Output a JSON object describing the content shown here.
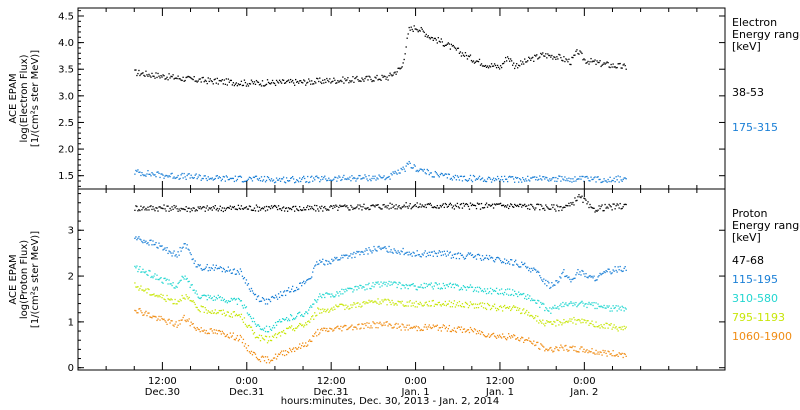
{
  "chart_data": [
    {
      "type": "scatter",
      "panel": "electron",
      "ylabel_lines": [
        "ACE EPAM",
        "log(Electron Flux)",
        "[1/(cm²s ster MeV)]"
      ],
      "ylim": [
        1.25,
        4.65
      ],
      "yticks": [
        "1.5",
        "2.0",
        "2.5",
        "3.0",
        "3.5",
        "4.0",
        "4.5"
      ],
      "ytick_values": [
        1.5,
        2.0,
        2.5,
        3.0,
        3.5,
        4.0,
        4.5
      ],
      "legend_title_lines": [
        "Electron",
        "Energy ranges",
        "[keV]"
      ],
      "series": [
        {
          "name": "38-53",
          "color": "#000000",
          "x": [
            0,
            4,
            8,
            12,
            16,
            20,
            24,
            28,
            32,
            36,
            38,
            39,
            40,
            41,
            42,
            44,
            46,
            48,
            50,
            52,
            53,
            54,
            55,
            56,
            58,
            60,
            61,
            62,
            63,
            64,
            66,
            68,
            70
          ],
          "y": [
            3.45,
            3.38,
            3.32,
            3.28,
            3.25,
            3.26,
            3.27,
            3.3,
            3.32,
            3.36,
            3.55,
            4.25,
            4.3,
            4.22,
            4.12,
            4.0,
            3.85,
            3.7,
            3.6,
            3.55,
            3.75,
            3.58,
            3.62,
            3.68,
            3.78,
            3.75,
            3.7,
            3.65,
            3.85,
            3.68,
            3.62,
            3.58,
            3.55
          ]
        },
        {
          "name": "175-315",
          "color": "#1a7fd6",
          "x": [
            0,
            4,
            8,
            12,
            16,
            20,
            24,
            28,
            32,
            36,
            38,
            39,
            40,
            42,
            44,
            46,
            48,
            50,
            52,
            54,
            56,
            58,
            60,
            62,
            64,
            66,
            68,
            70
          ],
          "y": [
            1.58,
            1.52,
            1.49,
            1.46,
            1.45,
            1.44,
            1.44,
            1.45,
            1.47,
            1.48,
            1.6,
            1.72,
            1.65,
            1.55,
            1.5,
            1.47,
            1.46,
            1.45,
            1.45,
            1.44,
            1.46,
            1.47,
            1.45,
            1.45,
            1.44,
            1.44,
            1.45,
            1.45
          ]
        }
      ]
    },
    {
      "type": "scatter",
      "panel": "proton",
      "ylabel_lines": [
        "ACE EPAM",
        "log(Proton Flux)",
        "[1/(cm²s ster MeV)]"
      ],
      "ylim": [
        -0.05,
        3.9
      ],
      "yticks": [
        "0",
        "1",
        "2",
        "3"
      ],
      "ytick_values": [
        0,
        1,
        2,
        3
      ],
      "legend_title_lines": [
        "Proton",
        "Energy ranges",
        "[keV]"
      ],
      "series": [
        {
          "name": "47-68",
          "color": "#000000",
          "x": [
            0,
            4,
            8,
            12,
            16,
            20,
            24,
            28,
            32,
            36,
            40,
            44,
            48,
            52,
            54,
            56,
            58,
            60,
            62,
            63,
            64,
            65,
            66,
            68,
            70
          ],
          "y": [
            3.5,
            3.5,
            3.48,
            3.49,
            3.5,
            3.5,
            3.48,
            3.5,
            3.52,
            3.54,
            3.55,
            3.55,
            3.54,
            3.55,
            3.55,
            3.53,
            3.52,
            3.5,
            3.55,
            3.75,
            3.65,
            3.45,
            3.5,
            3.52,
            3.55
          ]
        },
        {
          "name": "115-195",
          "color": "#1a7fd6",
          "x": [
            0,
            3,
            5,
            6,
            7,
            9,
            11,
            13,
            15,
            16,
            17,
            18,
            19,
            20,
            22,
            24,
            25,
            26,
            28,
            30,
            32,
            34,
            36,
            38,
            40,
            42,
            44,
            46,
            48,
            50,
            52,
            54,
            56,
            57,
            58,
            59,
            60,
            61,
            62,
            63,
            64,
            65,
            66,
            68,
            70
          ],
          "y": [
            2.85,
            2.7,
            2.55,
            2.45,
            2.75,
            2.2,
            2.2,
            2.15,
            2.1,
            1.85,
            1.6,
            1.5,
            1.45,
            1.55,
            1.7,
            1.85,
            2.0,
            2.3,
            2.35,
            2.45,
            2.5,
            2.6,
            2.6,
            2.55,
            2.5,
            2.5,
            2.5,
            2.45,
            2.45,
            2.4,
            2.35,
            2.3,
            2.2,
            2.1,
            1.95,
            1.8,
            1.9,
            2.1,
            1.9,
            2.1,
            2.05,
            1.95,
            2.0,
            2.15,
            2.2
          ]
        },
        {
          "name": "310-580",
          "color": "#22d6d0",
          "x": [
            0,
            3,
            5,
            6,
            7,
            9,
            11,
            13,
            15,
            16,
            17,
            18,
            19,
            20,
            22,
            24,
            25,
            26,
            28,
            30,
            32,
            34,
            36,
            38,
            40,
            42,
            44,
            46,
            48,
            50,
            52,
            54,
            56,
            58,
            59,
            60,
            62,
            64,
            66,
            68,
            70
          ],
          "y": [
            2.2,
            2.0,
            1.85,
            1.8,
            2.0,
            1.6,
            1.55,
            1.5,
            1.45,
            1.25,
            1.0,
            0.9,
            0.85,
            0.95,
            1.1,
            1.2,
            1.3,
            1.55,
            1.6,
            1.7,
            1.75,
            1.82,
            1.85,
            1.8,
            1.78,
            1.8,
            1.8,
            1.78,
            1.75,
            1.7,
            1.68,
            1.65,
            1.55,
            1.35,
            1.25,
            1.35,
            1.4,
            1.4,
            1.35,
            1.3,
            1.3
          ]
        },
        {
          "name": "795-1193",
          "color": "#c8e60a",
          "x": [
            0,
            3,
            5,
            6,
            7,
            9,
            11,
            13,
            15,
            16,
            17,
            18,
            19,
            20,
            22,
            24,
            25,
            26,
            28,
            30,
            32,
            34,
            36,
            38,
            40,
            42,
            44,
            46,
            48,
            50,
            52,
            54,
            56,
            58,
            59,
            60,
            62,
            64,
            66,
            68,
            70
          ],
          "y": [
            1.8,
            1.6,
            1.5,
            1.45,
            1.6,
            1.3,
            1.25,
            1.2,
            1.15,
            0.95,
            0.75,
            0.65,
            0.62,
            0.7,
            0.85,
            0.95,
            1.05,
            1.25,
            1.3,
            1.35,
            1.4,
            1.45,
            1.45,
            1.42,
            1.4,
            1.42,
            1.42,
            1.4,
            1.38,
            1.35,
            1.32,
            1.3,
            1.2,
            1.0,
            0.95,
            1.0,
            1.05,
            1.0,
            0.95,
            0.9,
            0.85
          ]
        },
        {
          "name": "1060-1900",
          "color": "#f08c14",
          "x": [
            0,
            3,
            5,
            6,
            7,
            9,
            11,
            13,
            15,
            16,
            17,
            18,
            19,
            20,
            22,
            24,
            25,
            26,
            28,
            30,
            32,
            34,
            36,
            38,
            40,
            42,
            44,
            46,
            48,
            50,
            52,
            54,
            56,
            58,
            59,
            60,
            62,
            64,
            66,
            68,
            70
          ],
          "y": [
            1.3,
            1.1,
            1.0,
            0.95,
            1.1,
            0.85,
            0.8,
            0.75,
            0.65,
            0.45,
            0.3,
            0.2,
            0.18,
            0.25,
            0.4,
            0.5,
            0.6,
            0.8,
            0.85,
            0.9,
            0.92,
            0.95,
            0.95,
            0.9,
            0.88,
            0.9,
            0.88,
            0.85,
            0.82,
            0.75,
            0.7,
            0.68,
            0.6,
            0.45,
            0.4,
            0.45,
            0.42,
            0.4,
            0.35,
            0.32,
            0.3
          ]
        }
      ]
    }
  ],
  "x_axis": {
    "xlim": [
      -8,
      84
    ],
    "ticks": [
      {
        "x": 4,
        "time": "12:00",
        "date": "Dec.30"
      },
      {
        "x": 16,
        "time": "0:00",
        "date": "Dec.31"
      },
      {
        "x": 28,
        "time": "12:00",
        "date": "Dec.31"
      },
      {
        "x": 40,
        "time": "0:00",
        "date": "Jan. 1"
      },
      {
        "x": 52,
        "time": "12:00",
        "date": "Jan. 1"
      },
      {
        "x": 64,
        "time": "0:00",
        "date": "Jan. 2"
      }
    ],
    "minor_ticks": [
      -8,
      -4,
      0,
      8,
      12,
      20,
      24,
      32,
      36,
      44,
      48,
      56,
      60,
      68,
      72,
      76,
      80,
      84
    ],
    "xlabel": "hours:minutes, Dec. 30, 2013 - Jan. 2, 2014"
  }
}
